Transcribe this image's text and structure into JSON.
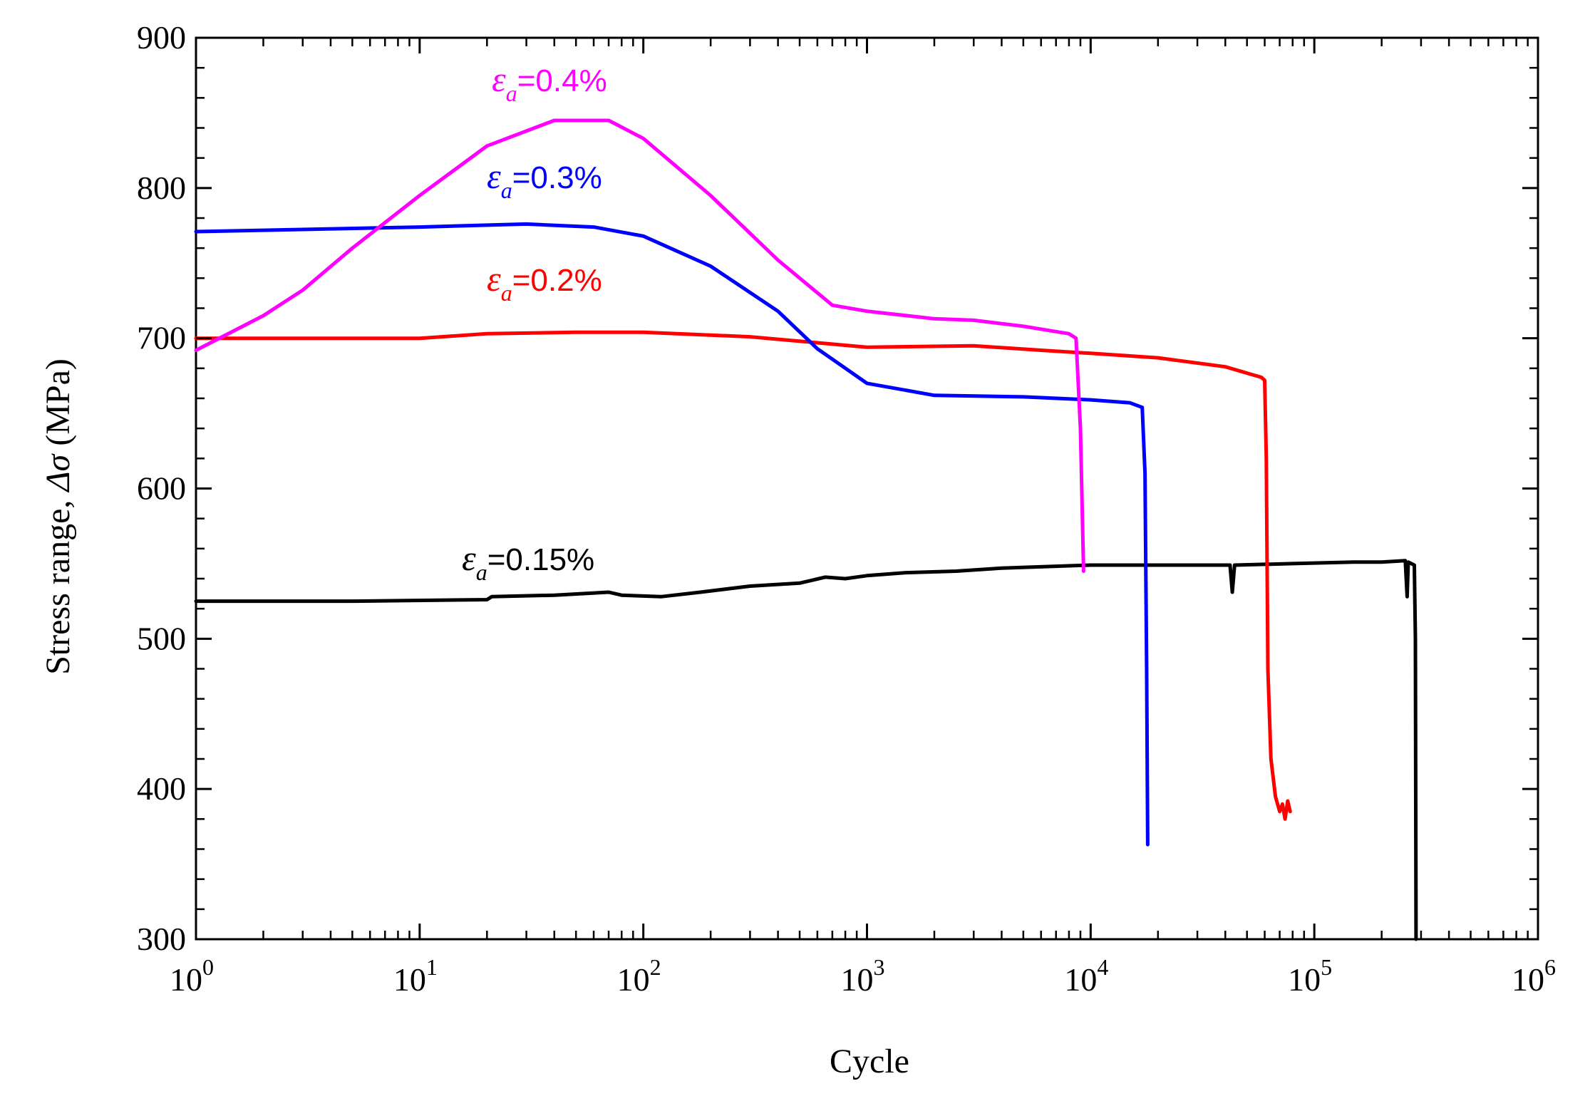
{
  "chart_data": {
    "type": "line",
    "title": "",
    "xlabel": "Cycle",
    "ylabel_prefix": "Stress range, ",
    "ylabel_symbol": "Δσ",
    "ylabel_suffix": " (MPa)",
    "xscale": "log",
    "xlim": [
      1,
      1000000
    ],
    "ylim": [
      300,
      900
    ],
    "yticks": [
      "300",
      "400",
      "500",
      "600",
      "700",
      "800",
      "900"
    ],
    "xticks": [
      {
        "base": "10",
        "exp": "0"
      },
      {
        "base": "10",
        "exp": "1"
      },
      {
        "base": "10",
        "exp": "2"
      },
      {
        "base": "10",
        "exp": "3"
      },
      {
        "base": "10",
        "exp": "4"
      },
      {
        "base": "10",
        "exp": "5"
      },
      {
        "base": "10",
        "exp": "6"
      }
    ],
    "series": [
      {
        "name": "εa=0.15%",
        "label_symbol": "ε",
        "label_sub": "a",
        "label_value": "=0.15%",
        "color": "#000000",
        "points": [
          [
            1,
            525
          ],
          [
            5,
            525
          ],
          [
            20,
            526
          ],
          [
            21,
            528
          ],
          [
            40,
            529
          ],
          [
            70,
            531
          ],
          [
            80,
            529
          ],
          [
            120,
            528
          ],
          [
            180,
            531
          ],
          [
            300,
            535
          ],
          [
            500,
            537
          ],
          [
            650,
            541
          ],
          [
            800,
            540
          ],
          [
            1000,
            542
          ],
          [
            1500,
            544
          ],
          [
            2500,
            545
          ],
          [
            4000,
            547
          ],
          [
            10000,
            549
          ],
          [
            20000,
            549
          ],
          [
            30000,
            549
          ],
          [
            42000,
            549
          ],
          [
            43000,
            531
          ],
          [
            44000,
            549
          ],
          [
            80000,
            550
          ],
          [
            150000,
            551
          ],
          [
            200000,
            551
          ],
          [
            255000,
            552
          ],
          [
            260000,
            528
          ],
          [
            263000,
            551
          ],
          [
            280000,
            549
          ],
          [
            283000,
            500
          ],
          [
            285000,
            300
          ]
        ]
      },
      {
        "name": "εa=0.2%",
        "label_symbol": "ε",
        "label_sub": "a",
        "label_value": "=0.2%",
        "color": "#ff0000",
        "points": [
          [
            1,
            700
          ],
          [
            5,
            700
          ],
          [
            10,
            700
          ],
          [
            20,
            703
          ],
          [
            50,
            704
          ],
          [
            100,
            704
          ],
          [
            300,
            701
          ],
          [
            600,
            697
          ],
          [
            1000,
            694
          ],
          [
            3000,
            695
          ],
          [
            6000,
            692
          ],
          [
            10000,
            690
          ],
          [
            20000,
            687
          ],
          [
            40000,
            681
          ],
          [
            58000,
            674
          ],
          [
            60000,
            672
          ],
          [
            61000,
            620
          ],
          [
            62000,
            480
          ],
          [
            64000,
            420
          ],
          [
            67000,
            395
          ],
          [
            70000,
            385
          ],
          [
            72000,
            390
          ],
          [
            74000,
            380
          ],
          [
            76000,
            392
          ],
          [
            78000,
            385
          ]
        ]
      },
      {
        "name": "εa=0.3%",
        "label_symbol": "ε",
        "label_sub": "a",
        "label_value": "=0.3%",
        "color": "#0000ff",
        "points": [
          [
            1,
            771
          ],
          [
            10,
            774
          ],
          [
            30,
            776
          ],
          [
            60,
            774
          ],
          [
            100,
            768
          ],
          [
            200,
            748
          ],
          [
            400,
            718
          ],
          [
            600,
            693
          ],
          [
            1000,
            670
          ],
          [
            2000,
            662
          ],
          [
            5000,
            661
          ],
          [
            10000,
            659
          ],
          [
            15000,
            657
          ],
          [
            17000,
            654
          ],
          [
            17500,
            610
          ],
          [
            17800,
            480
          ],
          [
            18000,
            363
          ]
        ]
      },
      {
        "name": "εa=0.4%",
        "label_symbol": "ε",
        "label_sub": "a",
        "label_value": "=0.4%",
        "color": "#ff00ff",
        "points": [
          [
            1,
            692
          ],
          [
            2,
            715
          ],
          [
            3,
            732
          ],
          [
            5,
            760
          ],
          [
            10,
            795
          ],
          [
            20,
            828
          ],
          [
            40,
            845
          ],
          [
            70,
            845
          ],
          [
            100,
            833
          ],
          [
            200,
            795
          ],
          [
            400,
            752
          ],
          [
            700,
            722
          ],
          [
            1000,
            718
          ],
          [
            2000,
            713
          ],
          [
            3000,
            712
          ],
          [
            5000,
            708
          ],
          [
            8000,
            703
          ],
          [
            8600,
            700
          ],
          [
            9000,
            640
          ],
          [
            9300,
            545
          ]
        ]
      }
    ]
  }
}
